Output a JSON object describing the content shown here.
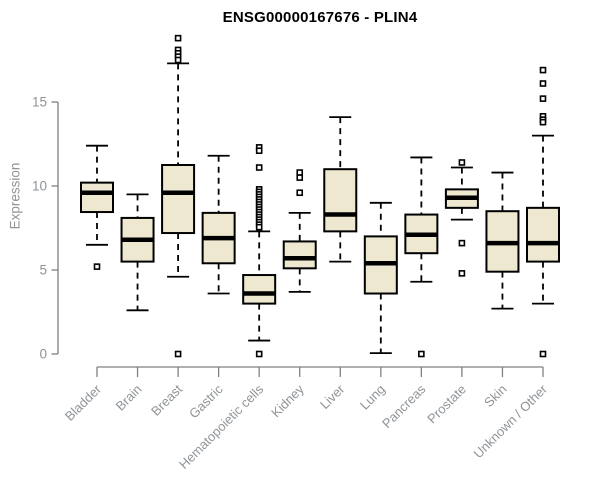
{
  "chart_data": {
    "type": "boxplot",
    "title": "ENSG00000167676 - PLIN4",
    "ylabel": "Expression",
    "ylim": [
      0,
      19
    ],
    "yticks": [
      0,
      5,
      10,
      15
    ],
    "grid": false,
    "legend": "none",
    "box_fill": "#EDE8CF",
    "box_stroke": "#000000",
    "axis_color": "#808080",
    "label_color": "#8F9498",
    "categories": [
      "Bladder",
      "Brain",
      "Breast",
      "Gastric",
      "Hematopoietic cells",
      "Kidney",
      "Liver",
      "Lung",
      "Pancreas",
      "Prostate",
      "Skin",
      "Unknown / Other"
    ],
    "series": [
      {
        "name": "Bladder",
        "whisker_low": 6.5,
        "q1": 8.45,
        "median": 9.6,
        "q3": 10.2,
        "whisker_high": 12.4,
        "outliers": [
          5.2
        ]
      },
      {
        "name": "Brain",
        "whisker_low": 2.6,
        "q1": 5.5,
        "median": 6.8,
        "q3": 8.1,
        "whisker_high": 9.5,
        "outliers": []
      },
      {
        "name": "Breast",
        "whisker_low": 4.6,
        "q1": 7.2,
        "median": 9.6,
        "q3": 11.25,
        "whisker_high": 17.3,
        "outliers": [
          18.8,
          18.1,
          17.9,
          17.7,
          17.5,
          0
        ]
      },
      {
        "name": "Gastric",
        "whisker_low": 3.6,
        "q1": 5.4,
        "median": 6.9,
        "q3": 8.4,
        "whisker_high": 11.8,
        "outliers": []
      },
      {
        "name": "Hematopoietic cells",
        "whisker_low": 0.8,
        "q1": 3.0,
        "median": 3.6,
        "q3": 4.7,
        "whisker_high": 7.3,
        "outliers": [
          12.3,
          12.1,
          11.1,
          9.8,
          9.65,
          9.5,
          9.35,
          9.2,
          9.05,
          8.9,
          8.75,
          8.6,
          8.45,
          8.3,
          8.15,
          8.0,
          7.85,
          7.7,
          7.55,
          0
        ]
      },
      {
        "name": "Kidney",
        "whisker_low": 3.7,
        "q1": 5.1,
        "median": 5.7,
        "q3": 6.7,
        "whisker_high": 8.4,
        "outliers": [
          10.8,
          10.5,
          9.6
        ]
      },
      {
        "name": "Liver",
        "whisker_low": 5.5,
        "q1": 7.3,
        "median": 8.3,
        "q3": 11.0,
        "whisker_high": 14.1,
        "outliers": []
      },
      {
        "name": "Lung",
        "whisker_low": 0.05,
        "q1": 3.6,
        "median": 5.4,
        "q3": 7.0,
        "whisker_high": 9.0,
        "outliers": []
      },
      {
        "name": "Pancreas",
        "whisker_low": 4.3,
        "q1": 6.0,
        "median": 7.1,
        "q3": 8.3,
        "whisker_high": 11.7,
        "outliers": [
          0
        ]
      },
      {
        "name": "Prostate",
        "whisker_low": 8.0,
        "q1": 8.7,
        "median": 9.3,
        "q3": 9.8,
        "whisker_high": 11.1,
        "outliers": [
          11.4,
          6.6,
          4.8
        ]
      },
      {
        "name": "Skin",
        "whisker_low": 2.7,
        "q1": 4.9,
        "median": 6.6,
        "q3": 8.5,
        "whisker_high": 10.8,
        "outliers": []
      },
      {
        "name": "Unknown / Other",
        "whisker_low": 3.0,
        "q1": 5.5,
        "median": 6.6,
        "q3": 8.7,
        "whisker_high": 13.0,
        "outliers": [
          16.9,
          16.1,
          15.2,
          14.15,
          13.95,
          13.8,
          0
        ]
      }
    ]
  }
}
